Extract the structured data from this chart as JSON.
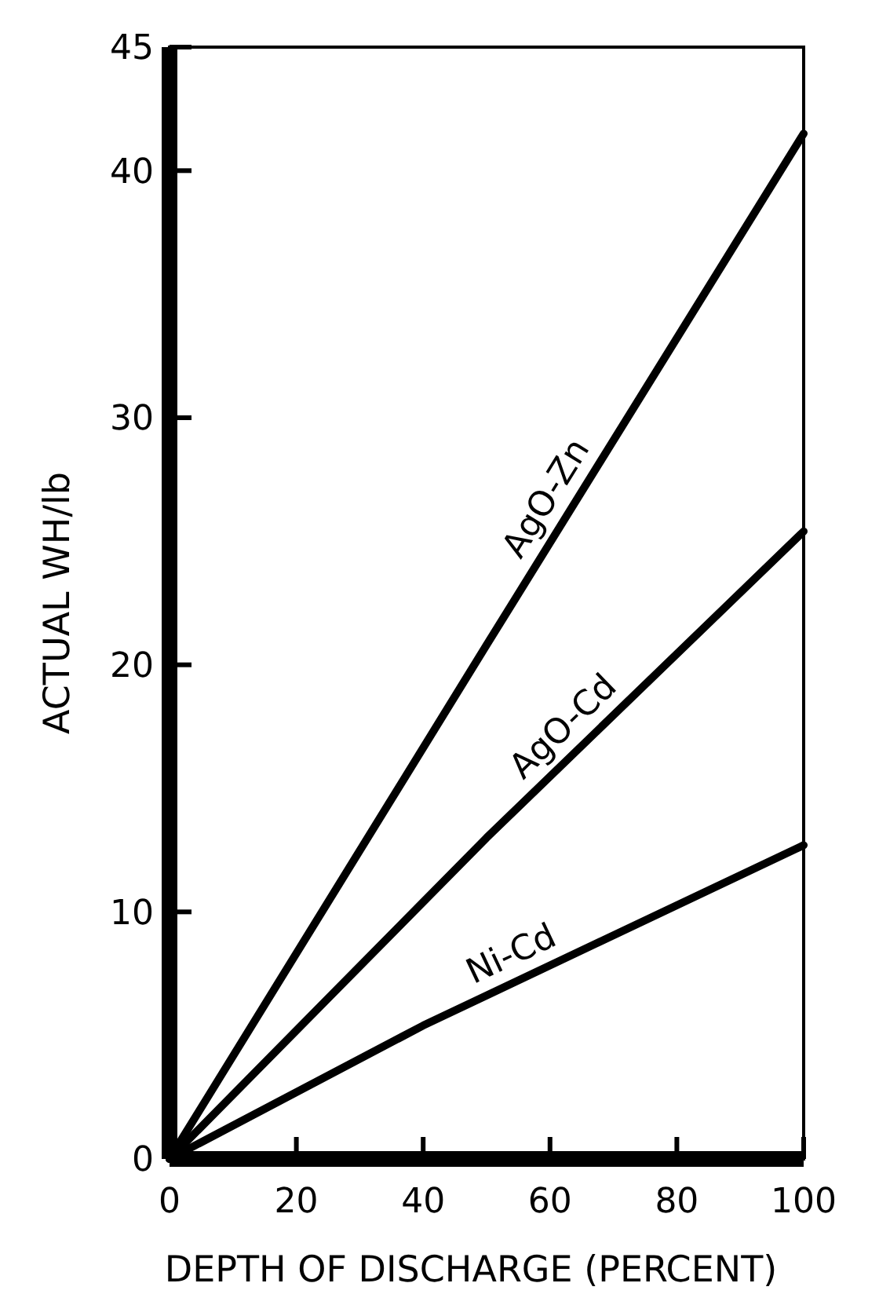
{
  "chart_data": {
    "type": "line",
    "xlabel": "DEPTH OF DISCHARGE (PERCENT)",
    "ylabel": "ACTUAL WH/lb",
    "xlim": [
      0,
      100
    ],
    "ylim": [
      0,
      45
    ],
    "xticks": [
      0,
      20,
      40,
      60,
      80,
      100
    ],
    "yticks": [
      0,
      10,
      20,
      30,
      40,
      45
    ],
    "grid": false,
    "legend": false,
    "marker": "none",
    "line_style": "solid",
    "series": [
      {
        "name": "AgO-Zn",
        "color": "#000000",
        "x": [
          0,
          50,
          100
        ],
        "values": [
          0,
          20.8,
          41.5
        ]
      },
      {
        "name": "AgO-Cd",
        "color": "#000000",
        "x": [
          0,
          50,
          100
        ],
        "values": [
          0,
          13,
          25.4
        ]
      },
      {
        "name": "Ni-Cd",
        "color": "#000000",
        "x": [
          0,
          40,
          100
        ],
        "values": [
          0,
          5.4,
          12.7
        ]
      }
    ]
  }
}
